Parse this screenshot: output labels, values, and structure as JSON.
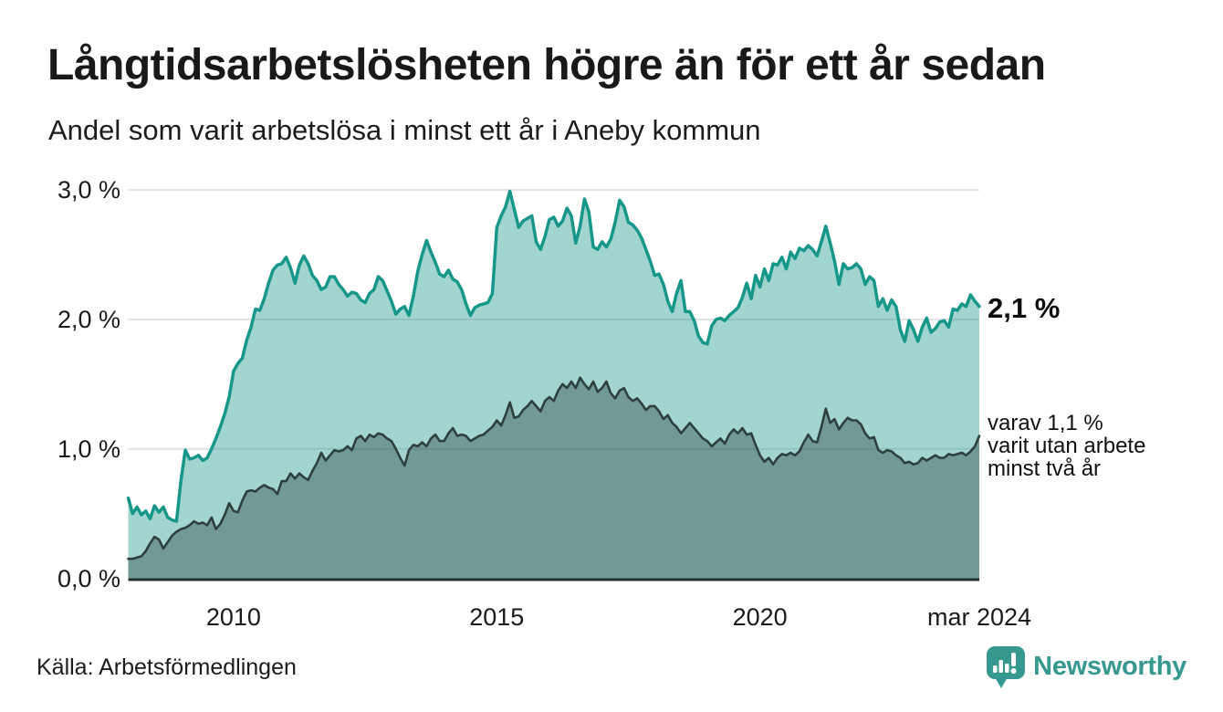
{
  "header": {
    "title": "Långtidsarbetslösheten högre än för ett år sedan",
    "subtitle": "Andel som varit arbetslösa i minst ett år i Aneby kommun"
  },
  "chart_data": {
    "type": "area",
    "x_unit": "month",
    "x_range_label": "jan 2008 – mar 2024",
    "ylim": [
      0,
      3
    ],
    "grid": "horizontal",
    "y_ticks": [
      {
        "label": "3,0 %",
        "value": 3
      },
      {
        "label": "2,0 %",
        "value": 2
      },
      {
        "label": "1,0 %",
        "value": 1
      },
      {
        "label": "0,0 %",
        "value": 0
      }
    ],
    "x_ticks": [
      {
        "label": "2010",
        "month_index": 24
      },
      {
        "label": "2015",
        "month_index": 84
      },
      {
        "label": "2020",
        "month_index": 144
      },
      {
        "label": "mar 2024",
        "month_index": 194
      }
    ],
    "colors": {
      "line_total": "#17978a",
      "fill_total": "rgba(23,151,137,0.40)",
      "line_two_years": "#2e403d",
      "fill_two_years": "rgba(35,56,53,0.38)",
      "gridline": "#e1e1e6",
      "axis": "#243230"
    },
    "series": [
      {
        "name": "Arbetslösa minst ett år",
        "values": [
          0.62,
          0.5,
          0.55,
          0.49,
          0.52,
          0.46,
          0.56,
          0.51,
          0.55,
          0.47,
          0.45,
          0.44,
          0.75,
          0.99,
          0.92,
          0.93,
          0.95,
          0.91,
          0.93,
          1.0,
          1.08,
          1.17,
          1.27,
          1.4,
          1.6,
          1.66,
          1.7,
          1.84,
          1.94,
          2.08,
          2.07,
          2.16,
          2.28,
          2.38,
          2.42,
          2.43,
          2.48,
          2.4,
          2.28,
          2.42,
          2.49,
          2.43,
          2.34,
          2.3,
          2.23,
          2.25,
          2.33,
          2.33,
          2.27,
          2.23,
          2.18,
          2.21,
          2.2,
          2.15,
          2.13,
          2.2,
          2.23,
          2.33,
          2.3,
          2.22,
          2.14,
          2.04,
          2.08,
          2.1,
          2.03,
          2.18,
          2.37,
          2.5,
          2.61,
          2.52,
          2.44,
          2.35,
          2.33,
          2.38,
          2.31,
          2.29,
          2.23,
          2.12,
          2.03,
          2.09,
          2.11,
          2.12,
          2.13,
          2.2,
          2.71,
          2.8,
          2.87,
          2.99,
          2.85,
          2.71,
          2.76,
          2.78,
          2.8,
          2.6,
          2.54,
          2.64,
          2.77,
          2.79,
          2.72,
          2.76,
          2.86,
          2.8,
          2.59,
          2.72,
          2.93,
          2.83,
          2.56,
          2.54,
          2.6,
          2.56,
          2.62,
          2.75,
          2.92,
          2.87,
          2.75,
          2.73,
          2.69,
          2.63,
          2.54,
          2.45,
          2.34,
          2.35,
          2.27,
          2.14,
          2.06,
          2.2,
          2.3,
          2.06,
          2.06,
          1.99,
          1.87,
          1.82,
          1.81,
          1.95,
          2.0,
          2.01,
          1.99,
          2.03,
          2.06,
          2.09,
          2.17,
          2.28,
          2.16,
          2.34,
          2.25,
          2.39,
          2.3,
          2.43,
          2.42,
          2.48,
          2.39,
          2.52,
          2.47,
          2.55,
          2.53,
          2.57,
          2.54,
          2.49,
          2.6,
          2.72,
          2.59,
          2.45,
          2.27,
          2.43,
          2.39,
          2.4,
          2.43,
          2.39,
          2.27,
          2.33,
          2.3,
          2.1,
          2.16,
          2.07,
          2.15,
          2.1,
          1.92,
          1.83,
          1.99,
          1.92,
          1.83,
          1.94,
          2.01,
          1.9,
          1.93,
          1.98,
          1.99,
          1.94,
          2.08,
          2.07,
          2.12,
          2.1,
          2.19,
          2.14,
          2.1
        ]
      },
      {
        "name": "Varav utan arbete minst två år",
        "values": [
          0.15,
          0.15,
          0.16,
          0.17,
          0.21,
          0.27,
          0.32,
          0.3,
          0.23,
          0.28,
          0.33,
          0.36,
          0.38,
          0.39,
          0.41,
          0.44,
          0.42,
          0.43,
          0.41,
          0.47,
          0.38,
          0.42,
          0.49,
          0.58,
          0.52,
          0.51,
          0.6,
          0.67,
          0.68,
          0.67,
          0.7,
          0.72,
          0.7,
          0.69,
          0.65,
          0.75,
          0.75,
          0.81,
          0.77,
          0.81,
          0.78,
          0.76,
          0.83,
          0.89,
          0.97,
          0.91,
          0.95,
          0.99,
          0.98,
          0.99,
          1.02,
          0.99,
          1.08,
          1.1,
          1.06,
          1.11,
          1.09,
          1.12,
          1.11,
          1.08,
          1.06,
          1.0,
          0.93,
          0.87,
          0.99,
          1.03,
          1.02,
          1.05,
          1.02,
          1.08,
          1.11,
          1.06,
          1.06,
          1.12,
          1.16,
          1.1,
          1.11,
          1.1,
          1.06,
          1.08,
          1.1,
          1.11,
          1.14,
          1.17,
          1.22,
          1.18,
          1.26,
          1.36,
          1.24,
          1.25,
          1.3,
          1.33,
          1.37,
          1.33,
          1.29,
          1.37,
          1.4,
          1.37,
          1.45,
          1.5,
          1.47,
          1.52,
          1.47,
          1.55,
          1.5,
          1.46,
          1.52,
          1.44,
          1.47,
          1.52,
          1.43,
          1.39,
          1.45,
          1.47,
          1.4,
          1.37,
          1.39,
          1.35,
          1.3,
          1.33,
          1.33,
          1.29,
          1.23,
          1.26,
          1.2,
          1.17,
          1.12,
          1.16,
          1.2,
          1.16,
          1.12,
          1.08,
          1.06,
          1.02,
          1.05,
          1.08,
          1.04,
          1.11,
          1.15,
          1.12,
          1.16,
          1.11,
          1.12,
          1.03,
          0.95,
          0.9,
          0.93,
          0.88,
          0.93,
          0.96,
          0.95,
          0.97,
          0.95,
          0.98,
          1.05,
          1.11,
          1.06,
          1.05,
          1.17,
          1.31,
          1.2,
          1.23,
          1.15,
          1.2,
          1.24,
          1.22,
          1.22,
          1.19,
          1.12,
          1.08,
          1.09,
          0.99,
          0.97,
          0.99,
          0.98,
          0.95,
          0.93,
          0.89,
          0.9,
          0.88,
          0.89,
          0.93,
          0.91,
          0.93,
          0.95,
          0.93,
          0.93,
          0.96,
          0.95,
          0.96,
          0.97,
          0.95,
          0.98,
          1.02,
          1.1
        ]
      }
    ],
    "annotations": {
      "end_value_label": "2,1 %",
      "secondary_lines": [
        "varav 1,1 %",
        "varit utan arbete",
        "minst två år"
      ]
    }
  },
  "footer": {
    "source": "Källa: Arbetsförmedlingen",
    "brand": "Newsworthy",
    "brand_color": "#36988f"
  }
}
